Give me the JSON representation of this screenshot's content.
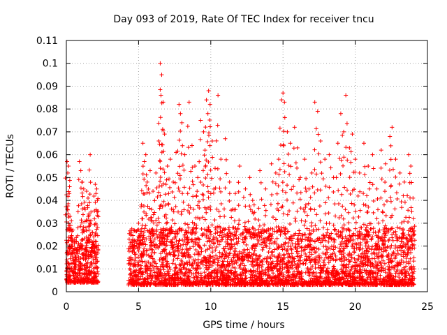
{
  "chart_data": {
    "type": "scatter",
    "title": "Day 093 of 2019, Rate Of TEC Index for receiver tncu",
    "xlabel": "GPS time / hours",
    "ylabel": "ROTI / TECUs",
    "xlim": [
      0,
      25
    ],
    "ylim": [
      0,
      0.11
    ],
    "xticks": [
      "0",
      "5",
      "10",
      "15",
      "20",
      "25"
    ],
    "yticks": [
      "0",
      "0.01",
      "0.02",
      "0.03",
      "0.04",
      "0.05",
      "0.06",
      "0.07",
      "0.08",
      "0.09",
      "0.1",
      "0.11"
    ],
    "grid": true,
    "marker": "+",
    "color": "#ff0000",
    "series": [
      {
        "name": "",
        "points": [
          [
            0.05,
            0.057
          ],
          [
            0.1,
            0.052
          ],
          [
            0.15,
            0.055
          ],
          [
            0.2,
            0.043
          ],
          [
            0.25,
            0.033
          ],
          [
            0.3,
            0.029
          ],
          [
            0.35,
            0.031
          ],
          [
            0.45,
            0.027
          ],
          [
            0.6,
            0.015
          ],
          [
            0.8,
            0.028
          ],
          [
            0.9,
            0.057
          ],
          [
            1.0,
            0.053
          ],
          [
            1.1,
            0.048
          ],
          [
            1.2,
            0.045
          ],
          [
            1.3,
            0.036
          ],
          [
            1.4,
            0.044
          ],
          [
            1.5,
            0.041
          ],
          [
            1.6,
            0.039
          ],
          [
            1.65,
            0.06
          ],
          [
            1.8,
            0.026
          ],
          [
            1.9,
            0.024
          ],
          [
            2.0,
            0.047
          ],
          [
            2.05,
            0.043
          ],
          [
            2.1,
            0.045
          ],
          [
            2.15,
            0.04
          ],
          [
            1.2,
            0.016
          ],
          [
            1.45,
            0.022
          ],
          [
            1.7,
            0.031
          ],
          [
            0.7,
            0.018
          ],
          [
            1.0,
            0.021
          ],
          [
            4.5,
            0.026
          ],
          [
            4.7,
            0.02
          ],
          [
            5.0,
            0.03
          ],
          [
            5.2,
            0.038
          ],
          [
            5.3,
            0.065
          ],
          [
            5.4,
            0.057
          ],
          [
            5.5,
            0.06
          ],
          [
            5.6,
            0.048
          ],
          [
            5.8,
            0.053
          ],
          [
            6.0,
            0.044
          ],
          [
            6.2,
            0.052
          ],
          [
            6.4,
            0.066
          ],
          [
            6.5,
            0.1
          ],
          [
            6.55,
            0.086
          ],
          [
            6.6,
            0.095
          ],
          [
            6.7,
            0.083
          ],
          [
            6.8,
            0.069
          ],
          [
            6.9,
            0.047
          ],
          [
            7.0,
            0.055
          ],
          [
            7.2,
            0.058
          ],
          [
            7.4,
            0.048
          ],
          [
            7.6,
            0.061
          ],
          [
            7.8,
            0.082
          ],
          [
            7.9,
            0.078
          ],
          [
            8.0,
            0.074
          ],
          [
            8.2,
            0.06
          ],
          [
            8.5,
            0.083
          ],
          [
            8.7,
            0.064
          ],
          [
            8.9,
            0.055
          ],
          [
            9.1,
            0.05
          ],
          [
            9.3,
            0.075
          ],
          [
            9.5,
            0.07
          ],
          [
            9.6,
            0.062
          ],
          [
            9.7,
            0.084
          ],
          [
            9.8,
            0.078
          ],
          [
            9.85,
            0.088
          ],
          [
            9.95,
            0.082
          ],
          [
            10.1,
            0.066
          ],
          [
            10.3,
            0.054
          ],
          [
            10.5,
            0.086
          ],
          [
            10.7,
            0.058
          ],
          [
            11.0,
            0.067
          ],
          [
            11.3,
            0.048
          ],
          [
            11.7,
            0.043
          ],
          [
            12.0,
            0.055
          ],
          [
            12.4,
            0.045
          ],
          [
            12.7,
            0.05
          ],
          [
            13.0,
            0.038
          ],
          [
            13.4,
            0.053
          ],
          [
            13.8,
            0.045
          ],
          [
            14.2,
            0.056
          ],
          [
            14.5,
            0.052
          ],
          [
            14.7,
            0.058
          ],
          [
            14.9,
            0.084
          ],
          [
            15.0,
            0.087
          ],
          [
            15.1,
            0.083
          ],
          [
            15.3,
            0.07
          ],
          [
            15.5,
            0.065
          ],
          [
            15.8,
            0.072
          ],
          [
            16.0,
            0.063
          ],
          [
            16.2,
            0.05
          ],
          [
            16.5,
            0.058
          ],
          [
            16.8,
            0.045
          ],
          [
            17.0,
            0.052
          ],
          [
            17.2,
            0.083
          ],
          [
            17.4,
            0.079
          ],
          [
            17.6,
            0.066
          ],
          [
            17.9,
            0.058
          ],
          [
            18.2,
            0.06
          ],
          [
            18.5,
            0.05
          ],
          [
            18.8,
            0.065
          ],
          [
            19.0,
            0.078
          ],
          [
            19.2,
            0.07
          ],
          [
            19.35,
            0.086
          ],
          [
            19.6,
            0.063
          ],
          [
            19.8,
            0.069
          ],
          [
            20.0,
            0.058
          ],
          [
            20.3,
            0.052
          ],
          [
            20.6,
            0.065
          ],
          [
            20.9,
            0.055
          ],
          [
            21.2,
            0.06
          ],
          [
            21.5,
            0.045
          ],
          [
            21.8,
            0.062
          ],
          [
            22.1,
            0.056
          ],
          [
            22.4,
            0.068
          ],
          [
            22.55,
            0.072
          ],
          [
            22.8,
            0.058
          ],
          [
            23.1,
            0.052
          ],
          [
            23.4,
            0.048
          ],
          [
            23.7,
            0.06
          ],
          [
            23.85,
            0.055
          ],
          [
            24.0,
            0.041
          ],
          [
            8.4,
            0.043
          ],
          [
            11.5,
            0.036
          ],
          [
            12.9,
            0.04
          ],
          [
            16.6,
            0.044
          ],
          [
            20.8,
            0.042
          ],
          [
            22.0,
            0.038
          ],
          [
            5.9,
            0.036
          ],
          [
            9.0,
            0.042
          ]
        ]
      }
    ],
    "dense_bands": [
      {
        "x_range": [
          0,
          2.2
        ],
        "y_range": [
          0.004,
          0.02
        ]
      },
      {
        "x_range": [
          4.3,
          24.1
        ],
        "y_range": [
          0.003,
          0.028
        ]
      }
    ]
  }
}
